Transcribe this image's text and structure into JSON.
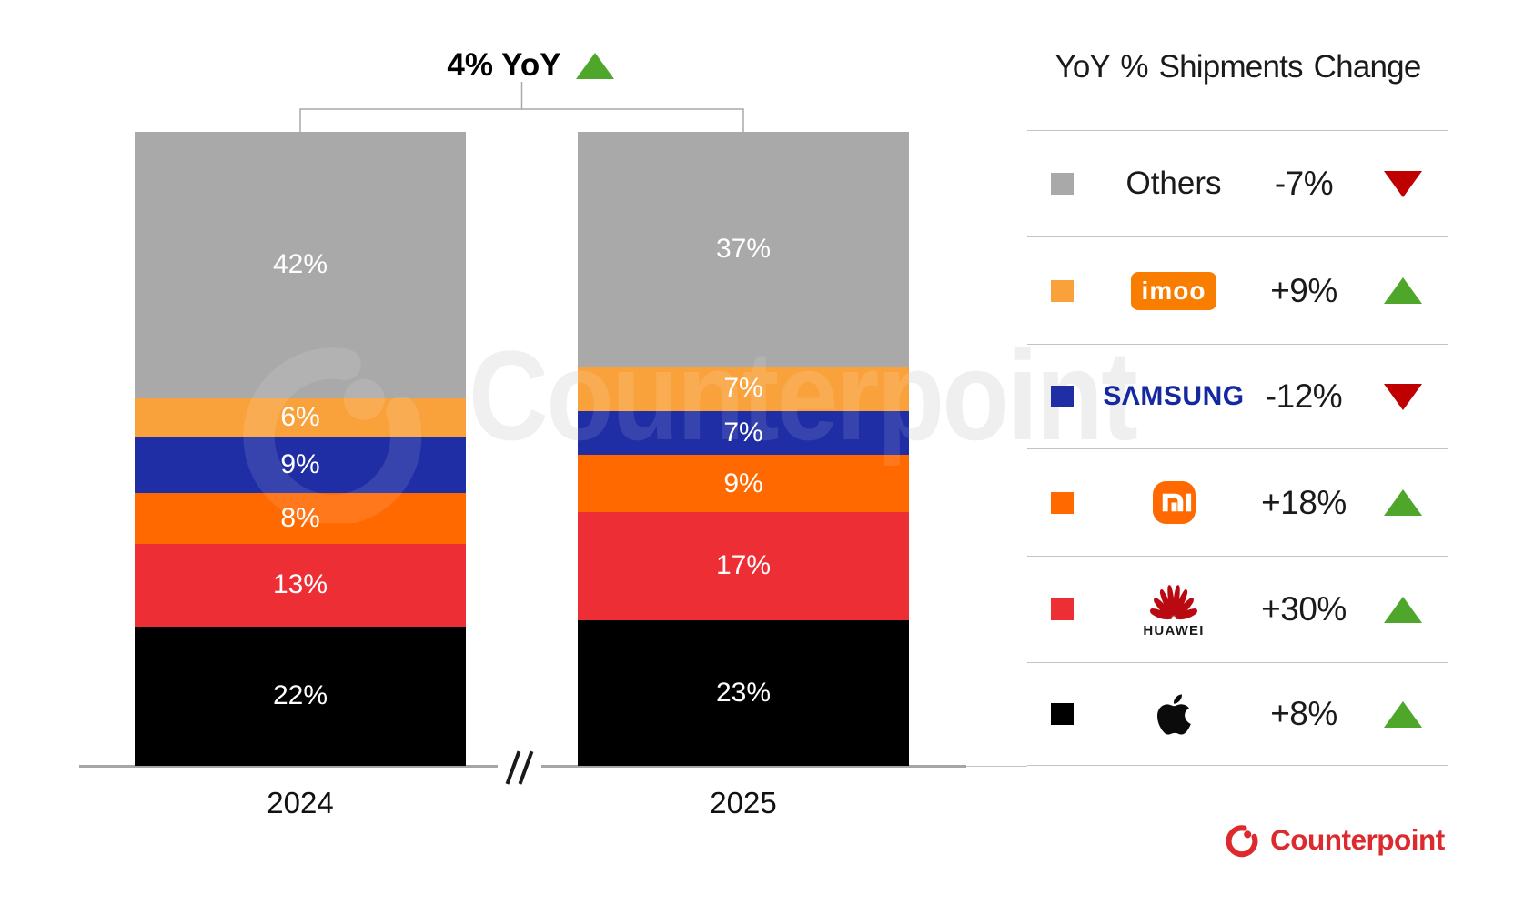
{
  "title": {
    "text": "4% YoY",
    "direction": "up"
  },
  "chart_data": {
    "type": "bar",
    "stacked": true,
    "categories": [
      "2024",
      "2025"
    ],
    "unit": "%",
    "series": [
      {
        "name": "Apple",
        "color": "#000000",
        "values": [
          22,
          23
        ]
      },
      {
        "name": "Huawei",
        "color": "#EE2E35",
        "values": [
          13,
          17
        ]
      },
      {
        "name": "Xiaomi",
        "color": "#FF6900",
        "values": [
          8,
          9
        ]
      },
      {
        "name": "Samsung",
        "color": "#1F2EA5",
        "values": [
          9,
          7
        ]
      },
      {
        "name": "imoo",
        "color": "#F9A23C",
        "values": [
          6,
          7
        ]
      },
      {
        "name": "Others",
        "color": "#A9A9A9",
        "values": [
          42,
          37
        ]
      }
    ],
    "ylim": [
      0,
      100
    ],
    "axis_break": "//",
    "yoy_total": "4% YoY"
  },
  "legend": {
    "title": "YoY % Shipments Change",
    "rows": [
      {
        "brand": "Others",
        "logo": "others",
        "swatch": "#A9A9A9",
        "change": "-7%",
        "direction": "down"
      },
      {
        "brand": "imoo",
        "logo": "imoo",
        "swatch": "#F9A23C",
        "change": "+9%",
        "direction": "up"
      },
      {
        "brand": "Samsung",
        "logo": "samsung",
        "swatch": "#1F2EA5",
        "change": "-12%",
        "direction": "down"
      },
      {
        "brand": "Xiaomi",
        "logo": "xiaomi",
        "swatch": "#FF6900",
        "change": "+18%",
        "direction": "up"
      },
      {
        "brand": "Huawei",
        "logo": "huawei",
        "swatch": "#EE2E35",
        "change": "+30%",
        "direction": "up"
      },
      {
        "brand": "Apple",
        "logo": "apple",
        "swatch": "#000000",
        "change": "+8%",
        "direction": "up"
      }
    ]
  },
  "logo_text": {
    "imoo": "imoo",
    "samsung": "SΛMSUNG",
    "huawei": "HUAWEI"
  },
  "footer": {
    "brand": "Counterpoint"
  },
  "watermark": {
    "text": "Counterpoint"
  },
  "colors": {
    "up_green": "#4EA72A",
    "down_red": "#C00000",
    "brand_red": "#DD2A2E"
  }
}
